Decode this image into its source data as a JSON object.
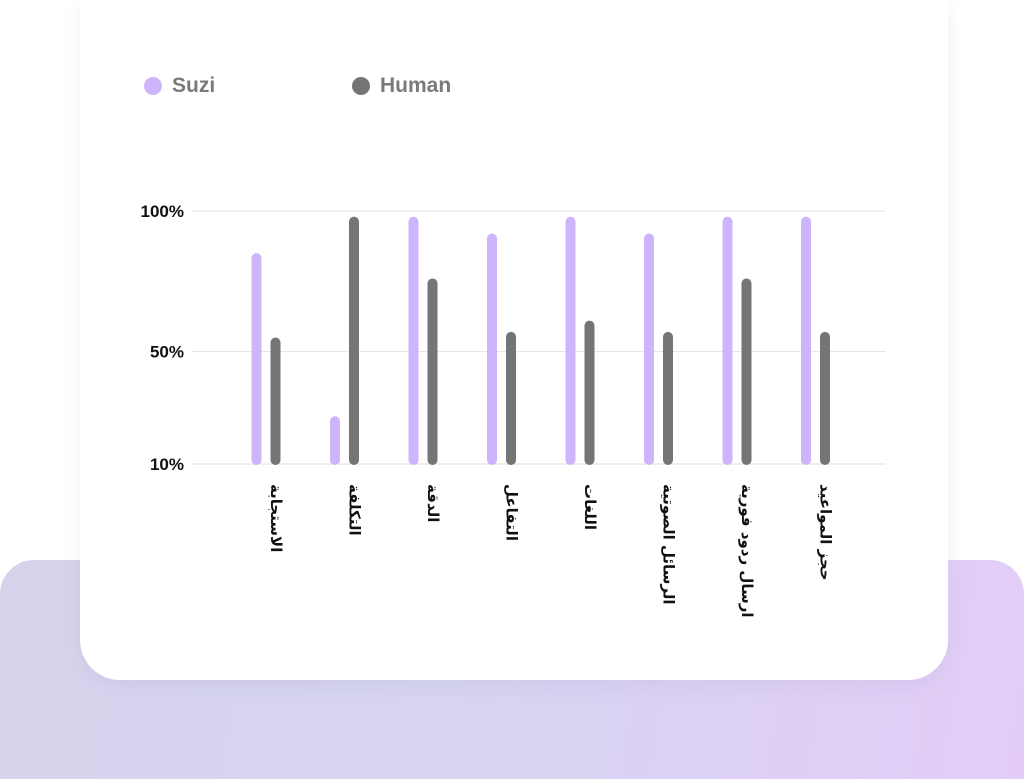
{
  "chart_data": {
    "type": "bar",
    "categories": [
      "الاستجابة",
      "التكلفة",
      "الدقة",
      "التفاعل",
      "اللغات",
      "الرسائل الصوتية",
      "ارسال ردود فورية",
      "حجز المواعيد"
    ],
    "series": [
      {
        "name": "Suzi",
        "color": "#cdb4fb",
        "values": [
          85,
          27,
          98,
          92,
          98,
          92,
          98,
          98
        ]
      },
      {
        "name": "Human",
        "color": "#757575",
        "values": [
          55,
          98,
          76,
          57,
          61,
          57,
          76,
          57
        ]
      }
    ],
    "yticks": [
      {
        "value": 100,
        "label": "100%"
      },
      {
        "value": 50,
        "label": "50%"
      },
      {
        "value": 10,
        "label": "10%"
      }
    ],
    "ylim": [
      10,
      100
    ],
    "grid": true,
    "legend_position": "top-left"
  }
}
